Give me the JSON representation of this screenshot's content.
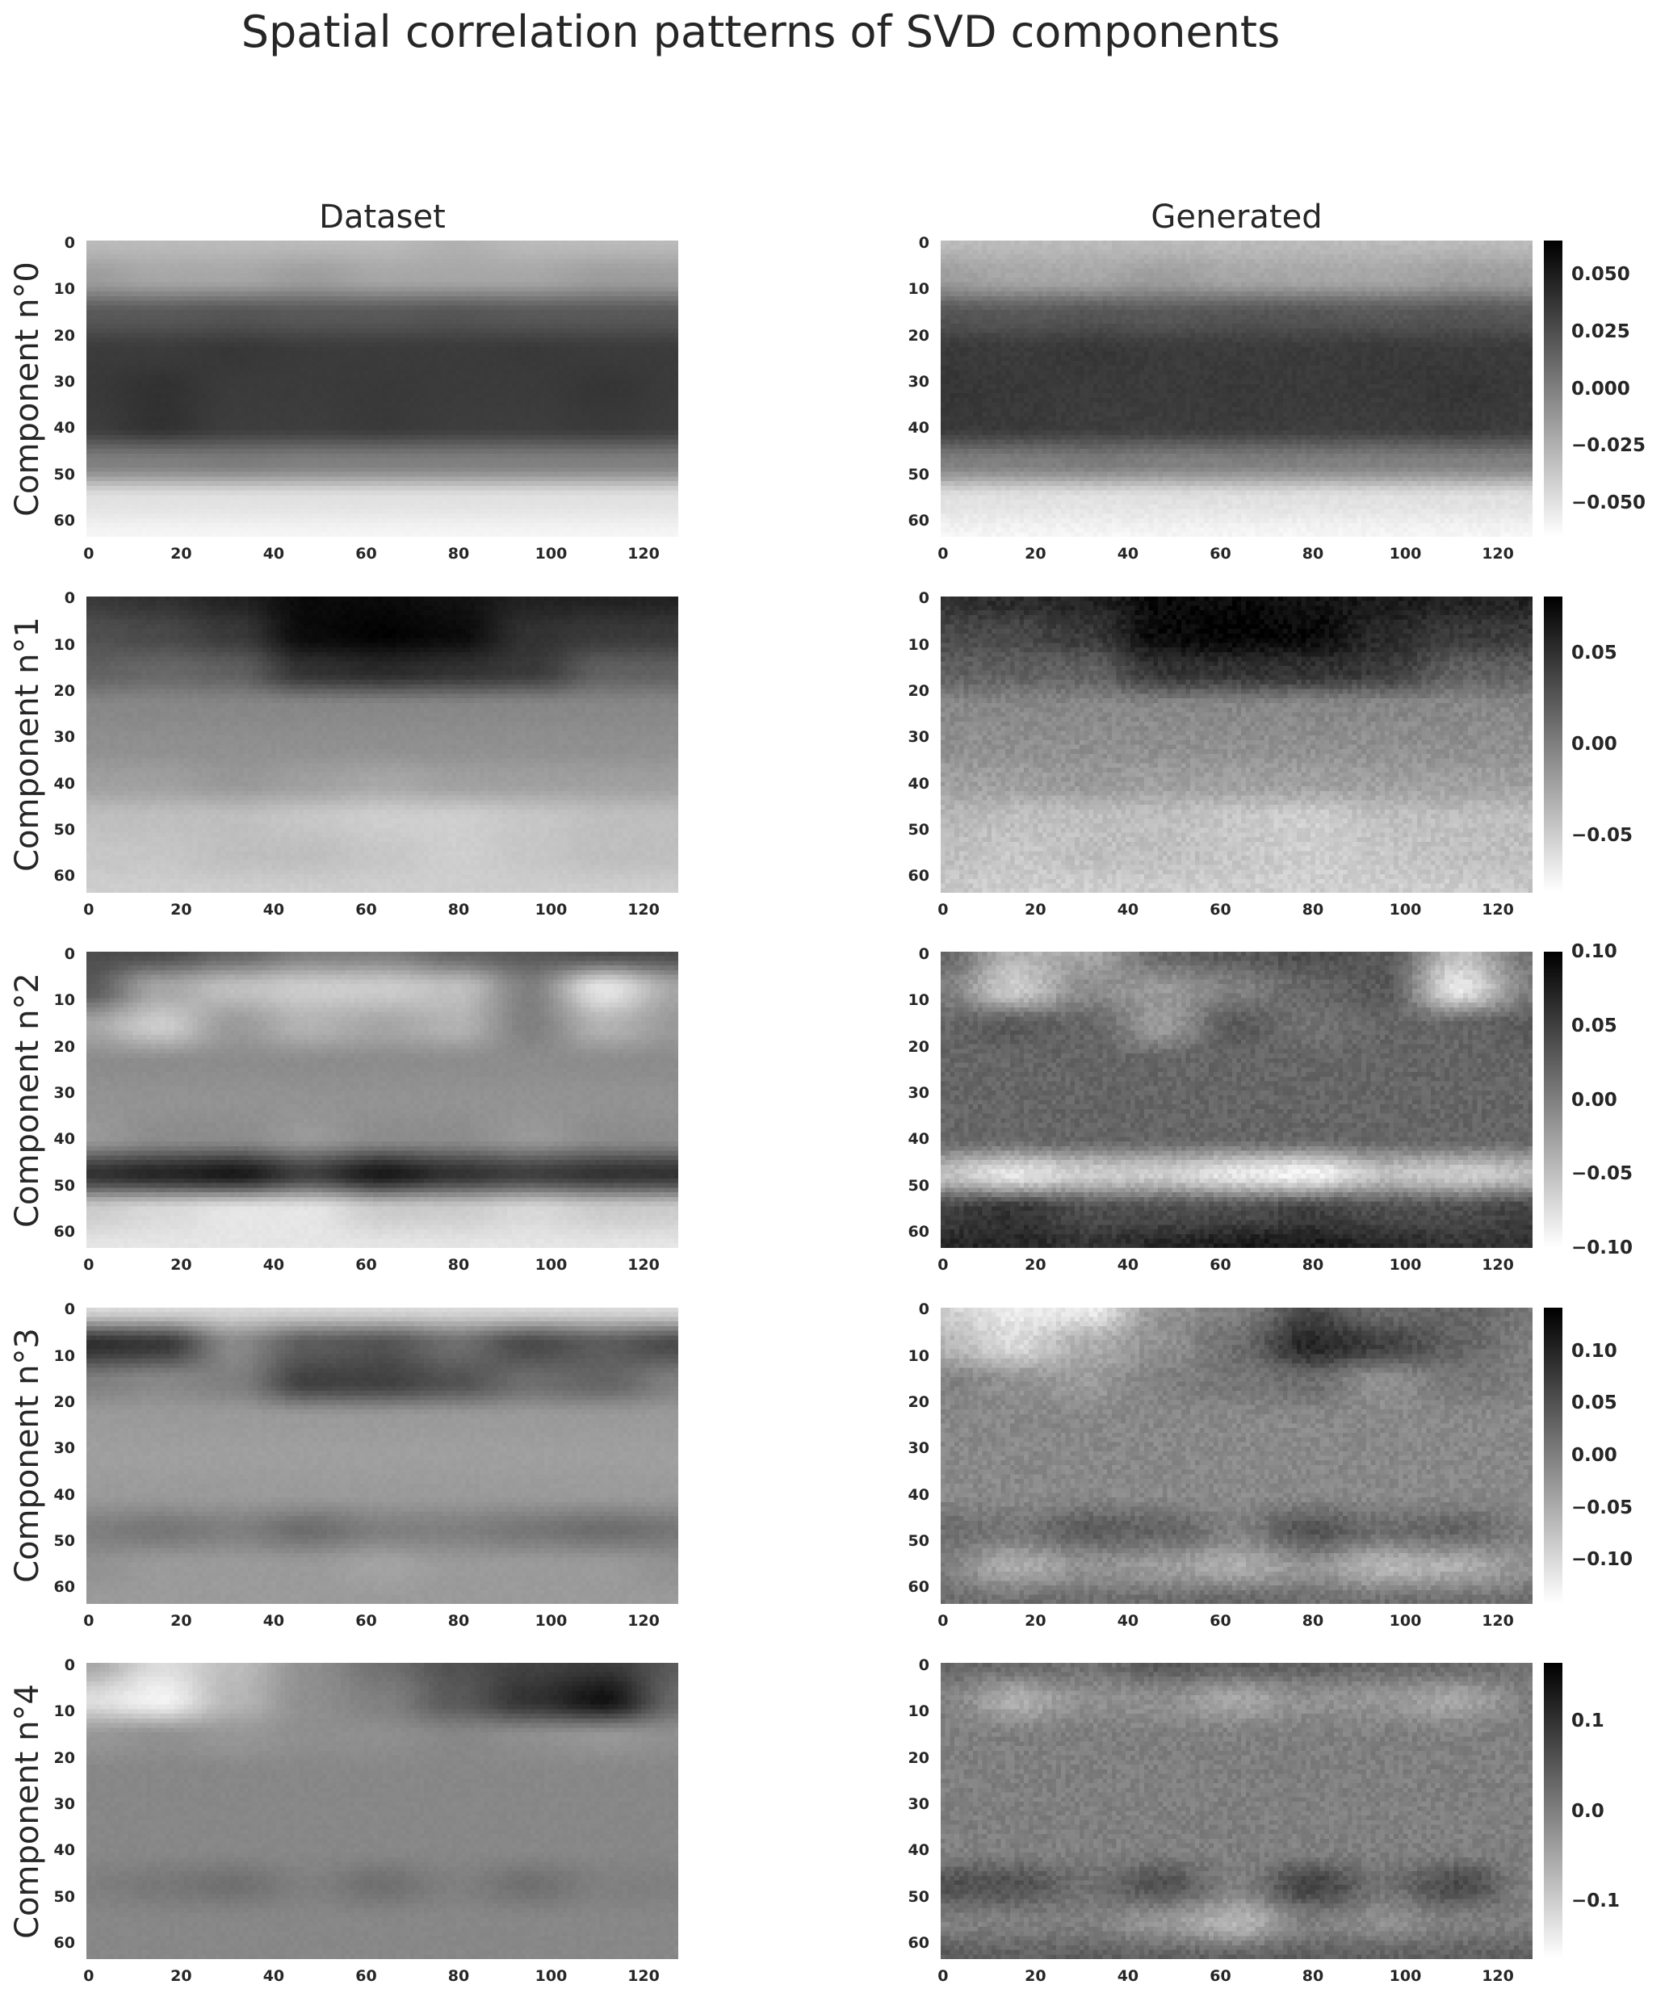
{
  "title": "Spatial correlation patterns of SVD components",
  "columns": [
    "Dataset",
    "Generated"
  ],
  "chart_data": {
    "type": "heatmap",
    "colormap": "gray_r",
    "grid": false,
    "shape": [
      64,
      128
    ],
    "xticks": [
      0,
      20,
      40,
      60,
      80,
      100,
      120
    ],
    "yticks": [
      0,
      10,
      20,
      30,
      40,
      50,
      60
    ],
    "coarse_grid_y": [
      0,
      8,
      16,
      24,
      32,
      40,
      48,
      56,
      64
    ],
    "coarse_grid_x": [
      0,
      16,
      32,
      48,
      64,
      80,
      96,
      112,
      128
    ],
    "rows": [
      {
        "label": "Component n°0",
        "vlim": [
          -0.065,
          0.065
        ],
        "colorbar_ticks": [
          "0.050",
          "0.025",
          "0.000",
          "−0.025",
          "−0.050"
        ],
        "colorbar_tick_values": [
          0.05,
          0.025,
          0,
          -0.025,
          -0.05
        ],
        "dataset": [
          [
            -0.03,
            -0.03,
            -0.03,
            -0.03,
            -0.03,
            -0.025,
            -0.03,
            -0.03,
            -0.03
          ],
          [
            -0.015,
            -0.02,
            -0.02,
            -0.015,
            -0.02,
            -0.02,
            -0.02,
            -0.015,
            -0.015
          ],
          [
            0.02,
            0.02,
            0.022,
            0.02,
            0.02,
            0.022,
            0.02,
            0.02,
            0.02
          ],
          [
            0.035,
            0.035,
            0.037,
            0.035,
            0.035,
            0.035,
            0.036,
            0.035,
            0.035
          ],
          [
            0.036,
            0.04,
            0.035,
            0.035,
            0.036,
            0.035,
            0.035,
            0.038,
            0.035
          ],
          [
            0.034,
            0.04,
            0.034,
            0.034,
            0.036,
            0.034,
            0.034,
            0.036,
            0.034
          ],
          [
            0.0,
            0.0,
            0.002,
            0.0,
            0.0,
            0.0,
            0.0,
            0.0,
            0.0
          ],
          [
            -0.05,
            -0.05,
            -0.05,
            -0.05,
            -0.05,
            -0.05,
            -0.05,
            -0.05,
            -0.05
          ],
          [
            -0.06,
            -0.06,
            -0.06,
            -0.06,
            -0.06,
            -0.06,
            -0.06,
            -0.06,
            -0.06
          ]
        ],
        "generated": [
          [
            -0.03,
            -0.03,
            -0.03,
            -0.03,
            -0.03,
            -0.03,
            -0.03,
            -0.03,
            -0.03
          ],
          [
            -0.015,
            -0.02,
            -0.02,
            -0.015,
            -0.02,
            -0.02,
            -0.02,
            -0.015,
            -0.015
          ],
          [
            0.022,
            0.02,
            0.022,
            0.02,
            0.022,
            0.022,
            0.02,
            0.022,
            0.02
          ],
          [
            0.036,
            0.035,
            0.037,
            0.035,
            0.035,
            0.035,
            0.036,
            0.035,
            0.035
          ],
          [
            0.038,
            0.036,
            0.035,
            0.035,
            0.036,
            0.035,
            0.036,
            0.038,
            0.035
          ],
          [
            0.036,
            0.036,
            0.034,
            0.034,
            0.035,
            0.034,
            0.034,
            0.036,
            0.034
          ],
          [
            0.0,
            0.0,
            0.002,
            0.0,
            0.0,
            0.0,
            0.0,
            0.0,
            0.0
          ],
          [
            -0.05,
            -0.05,
            -0.05,
            -0.05,
            -0.05,
            -0.05,
            -0.05,
            -0.05,
            -0.05
          ],
          [
            -0.06,
            -0.06,
            -0.06,
            -0.06,
            -0.06,
            -0.06,
            -0.06,
            -0.06,
            -0.06
          ]
        ]
      },
      {
        "label": "Component n°1",
        "vlim": [
          -0.081,
          0.081
        ],
        "colorbar_ticks": [
          "0.05",
          "0.00",
          "−0.05"
        ],
        "colorbar_tick_values": [
          0.05,
          0,
          -0.05
        ],
        "dataset": [
          [
            0.045,
            0.05,
            0.06,
            0.075,
            0.075,
            0.07,
            0.06,
            0.06,
            0.06
          ],
          [
            0.03,
            0.035,
            0.045,
            0.075,
            0.08,
            0.075,
            0.05,
            0.045,
            0.045
          ],
          [
            0.02,
            0.015,
            0.02,
            0.05,
            0.055,
            0.05,
            0.045,
            0.02,
            0.02
          ],
          [
            -0.005,
            -0.005,
            -0.005,
            -0.005,
            -0.005,
            -0.005,
            -0.005,
            -0.005,
            -0.005
          ],
          [
            -0.01,
            -0.01,
            -0.01,
            -0.01,
            -0.01,
            -0.01,
            -0.01,
            -0.01,
            -0.01
          ],
          [
            -0.02,
            -0.02,
            -0.015,
            -0.02,
            -0.025,
            -0.02,
            -0.02,
            -0.02,
            -0.02
          ],
          [
            -0.04,
            -0.04,
            -0.04,
            -0.045,
            -0.05,
            -0.05,
            -0.045,
            -0.04,
            -0.04
          ],
          [
            -0.045,
            -0.045,
            -0.04,
            -0.04,
            -0.045,
            -0.05,
            -0.045,
            -0.04,
            -0.04
          ],
          [
            -0.05,
            -0.05,
            -0.05,
            -0.05,
            -0.05,
            -0.05,
            -0.05,
            -0.05,
            -0.05
          ]
        ],
        "generated": [
          [
            0.05,
            0.055,
            0.06,
            0.075,
            0.075,
            0.07,
            0.065,
            0.06,
            0.06
          ],
          [
            0.035,
            0.035,
            0.045,
            0.075,
            0.08,
            0.075,
            0.055,
            0.045,
            0.045
          ],
          [
            0.02,
            0.02,
            0.02,
            0.05,
            0.05,
            0.05,
            0.045,
            0.02,
            0.02
          ],
          [
            -0.005,
            -0.005,
            -0.005,
            -0.005,
            -0.005,
            -0.005,
            -0.005,
            -0.005,
            -0.005
          ],
          [
            -0.01,
            -0.01,
            -0.01,
            -0.01,
            -0.01,
            -0.01,
            -0.01,
            -0.01,
            -0.01
          ],
          [
            -0.02,
            -0.02,
            -0.015,
            -0.02,
            -0.02,
            -0.02,
            -0.02,
            -0.02,
            -0.02
          ],
          [
            -0.035,
            -0.04,
            -0.04,
            -0.04,
            -0.045,
            -0.05,
            -0.04,
            -0.04,
            -0.04
          ],
          [
            -0.04,
            -0.045,
            -0.04,
            -0.04,
            -0.045,
            -0.05,
            -0.045,
            -0.04,
            -0.04
          ],
          [
            -0.045,
            -0.05,
            -0.05,
            -0.05,
            -0.05,
            -0.05,
            -0.05,
            -0.05,
            -0.045
          ]
        ]
      },
      {
        "label": "Component n°2",
        "vlim": [
          -0.1,
          0.1
        ],
        "colorbar_ticks": [
          "0.10",
          "0.05",
          "0.00",
          "−0.05",
          "−0.10"
        ],
        "colorbar_tick_values": [
          0.1,
          0.05,
          0,
          -0.05,
          -0.1
        ],
        "dataset": [
          [
            0.04,
            0.04,
            0.02,
            0.0,
            0.0,
            0.02,
            0.03,
            0.04,
            0.04
          ],
          [
            0.03,
            -0.03,
            -0.05,
            -0.06,
            -0.06,
            -0.05,
            0.0,
            -0.08,
            -0.03
          ],
          [
            -0.03,
            -0.06,
            -0.02,
            -0.04,
            -0.03,
            -0.04,
            0.0,
            -0.04,
            -0.02
          ],
          [
            -0.01,
            -0.01,
            -0.01,
            -0.01,
            -0.01,
            -0.01,
            -0.01,
            -0.01,
            -0.01
          ],
          [
            -0.015,
            -0.015,
            -0.015,
            -0.015,
            -0.015,
            -0.015,
            -0.015,
            -0.015,
            -0.015
          ],
          [
            -0.02,
            -0.01,
            -0.01,
            -0.02,
            -0.01,
            -0.01,
            -0.02,
            -0.01,
            -0.01
          ],
          [
            0.06,
            0.07,
            0.08,
            0.05,
            0.08,
            0.06,
            0.05,
            0.06,
            0.06
          ],
          [
            -0.06,
            -0.07,
            -0.08,
            -0.08,
            -0.06,
            -0.06,
            -0.07,
            -0.06,
            -0.06
          ],
          [
            -0.08,
            -0.08,
            -0.08,
            -0.08,
            -0.08,
            -0.08,
            -0.08,
            -0.08,
            -0.08
          ]
        ],
        "generated": [
          [
            0.02,
            -0.04,
            -0.03,
            0.02,
            0.03,
            0.04,
            0.03,
            -0.05,
            0.01
          ],
          [
            0.0,
            -0.06,
            -0.01,
            -0.02,
            0.0,
            0.02,
            0.03,
            -0.08,
            0.0
          ],
          [
            0.02,
            0.03,
            0.02,
            -0.02,
            0.03,
            0.01,
            0.02,
            0.02,
            0.03
          ],
          [
            0.02,
            0.02,
            0.02,
            0.02,
            0.02,
            0.02,
            0.02,
            0.02,
            0.02
          ],
          [
            0.02,
            0.02,
            0.02,
            0.02,
            0.02,
            0.02,
            0.02,
            0.02,
            0.02
          ],
          [
            0.02,
            0.02,
            0.02,
            0.02,
            0.02,
            0.02,
            0.02,
            0.02,
            0.02
          ],
          [
            -0.05,
            -0.08,
            -0.06,
            -0.06,
            -0.08,
            -0.09,
            -0.05,
            -0.06,
            -0.05
          ],
          [
            0.05,
            0.06,
            0.04,
            0.04,
            0.04,
            0.05,
            0.04,
            0.04,
            0.05
          ],
          [
            0.07,
            0.07,
            0.06,
            0.07,
            0.08,
            0.08,
            0.07,
            0.06,
            0.06
          ]
        ]
      },
      {
        "label": "Component n°3",
        "vlim": [
          -0.142,
          0.142
        ],
        "colorbar_ticks": [
          "0.10",
          "0.05",
          "0.00",
          "−0.05",
          "−0.10"
        ],
        "colorbar_tick_values": [
          0.1,
          0.05,
          0,
          -0.05,
          -0.1
        ],
        "dataset": [
          [
            -0.1,
            -0.1,
            -0.1,
            -0.1,
            -0.1,
            -0.1,
            -0.1,
            -0.1,
            -0.1
          ],
          [
            0.09,
            0.08,
            -0.01,
            0.04,
            0.05,
            0.02,
            0.06,
            0.04,
            0.06
          ],
          [
            0.0,
            -0.01,
            0.0,
            0.07,
            0.07,
            0.05,
            0.02,
            0.03,
            0.0
          ],
          [
            -0.03,
            -0.03,
            -0.03,
            -0.03,
            -0.03,
            -0.03,
            -0.03,
            -0.03,
            -0.03
          ],
          [
            -0.035,
            -0.035,
            -0.035,
            -0.035,
            -0.035,
            -0.035,
            -0.035,
            -0.035,
            -0.035
          ],
          [
            -0.03,
            -0.03,
            -0.03,
            -0.03,
            -0.03,
            -0.03,
            -0.03,
            -0.03,
            -0.03
          ],
          [
            0.0,
            0.01,
            0.0,
            0.02,
            0.0,
            0.0,
            0.01,
            0.02,
            0.01
          ],
          [
            -0.02,
            -0.03,
            -0.03,
            -0.03,
            -0.04,
            -0.03,
            -0.03,
            -0.03,
            -0.02
          ],
          [
            -0.03,
            -0.03,
            -0.03,
            -0.03,
            -0.03,
            -0.03,
            -0.03,
            -0.03,
            -0.03
          ]
        ],
        "generated": [
          [
            -0.09,
            -0.12,
            -0.12,
            -0.02,
            0.0,
            0.06,
            0.02,
            0.03,
            0.01
          ],
          [
            -0.06,
            -0.1,
            -0.05,
            -0.02,
            0.02,
            0.1,
            0.07,
            0.03,
            0.0
          ],
          [
            0.0,
            -0.02,
            -0.03,
            0.0,
            0.01,
            0.02,
            -0.02,
            0.01,
            0.0
          ],
          [
            -0.01,
            -0.01,
            -0.01,
            -0.01,
            -0.01,
            -0.01,
            -0.01,
            -0.01,
            -0.01
          ],
          [
            -0.01,
            -0.01,
            -0.01,
            -0.01,
            -0.01,
            -0.01,
            -0.01,
            -0.01,
            -0.01
          ],
          [
            -0.01,
            -0.01,
            -0.01,
            -0.01,
            -0.01,
            -0.01,
            -0.01,
            -0.01,
            -0.01
          ],
          [
            0.02,
            0.01,
            0.04,
            0.03,
            0.0,
            0.05,
            0.02,
            0.03,
            0.0
          ],
          [
            0.0,
            -0.05,
            -0.02,
            -0.03,
            -0.05,
            -0.02,
            -0.06,
            -0.05,
            -0.02
          ],
          [
            0.02,
            0.02,
            0.02,
            0.02,
            0.03,
            0.02,
            0.02,
            0.02,
            0.02
          ]
        ]
      },
      {
        "label": "Component n°4",
        "vlim": [
          -0.165,
          0.165
        ],
        "colorbar_ticks": [
          "0.1",
          "0.0",
          "−0.1"
        ],
        "colorbar_tick_values": [
          0.1,
          0,
          -0.1
        ],
        "dataset": [
          [
            -0.05,
            -0.12,
            -0.08,
            -0.02,
            0.02,
            0.06,
            0.08,
            0.09,
            0.05
          ],
          [
            -0.12,
            -0.15,
            -0.07,
            -0.02,
            0.0,
            0.05,
            0.1,
            0.14,
            0.03
          ],
          [
            -0.03,
            -0.02,
            -0.03,
            -0.02,
            -0.02,
            -0.01,
            -0.02,
            -0.03,
            -0.02
          ],
          [
            -0.01,
            -0.01,
            -0.01,
            -0.01,
            -0.01,
            -0.01,
            -0.01,
            -0.01,
            -0.01
          ],
          [
            -0.01,
            -0.01,
            -0.01,
            -0.01,
            -0.01,
            -0.01,
            -0.01,
            -0.01,
            -0.01
          ],
          [
            -0.01,
            -0.01,
            -0.01,
            -0.01,
            -0.01,
            -0.01,
            -0.01,
            -0.01,
            -0.01
          ],
          [
            0.0,
            0.01,
            0.02,
            0.0,
            0.02,
            0.0,
            0.02,
            0.0,
            0.0
          ],
          [
            -0.01,
            -0.01,
            -0.01,
            -0.01,
            -0.01,
            -0.01,
            -0.01,
            -0.01,
            -0.01
          ],
          [
            -0.01,
            -0.01,
            -0.01,
            -0.01,
            -0.01,
            -0.01,
            -0.01,
            -0.01,
            -0.01
          ]
        ],
        "generated": [
          [
            0.03,
            0.03,
            0.02,
            0.05,
            0.04,
            0.04,
            0.03,
            0.03,
            0.02
          ],
          [
            0.0,
            -0.06,
            -0.02,
            -0.02,
            -0.05,
            -0.02,
            -0.03,
            -0.05,
            0.0
          ],
          [
            0.0,
            0.0,
            0.0,
            0.0,
            0.0,
            0.0,
            0.0,
            0.0,
            0.0
          ],
          [
            0.0,
            0.0,
            0.0,
            0.0,
            0.0,
            0.0,
            0.0,
            0.0,
            0.0
          ],
          [
            0.0,
            0.0,
            0.0,
            0.0,
            0.0,
            0.0,
            0.0,
            0.0,
            0.0
          ],
          [
            0.0,
            0.0,
            0.0,
            0.0,
            0.0,
            0.0,
            0.0,
            0.0,
            0.0
          ],
          [
            0.06,
            0.06,
            0.02,
            0.06,
            0.0,
            0.08,
            0.02,
            0.07,
            0.0
          ],
          [
            0.0,
            0.0,
            0.0,
            -0.03,
            -0.07,
            0.0,
            -0.02,
            0.0,
            0.0
          ],
          [
            0.05,
            0.04,
            0.04,
            0.04,
            0.04,
            0.04,
            0.04,
            0.04,
            0.04
          ]
        ]
      }
    ]
  }
}
